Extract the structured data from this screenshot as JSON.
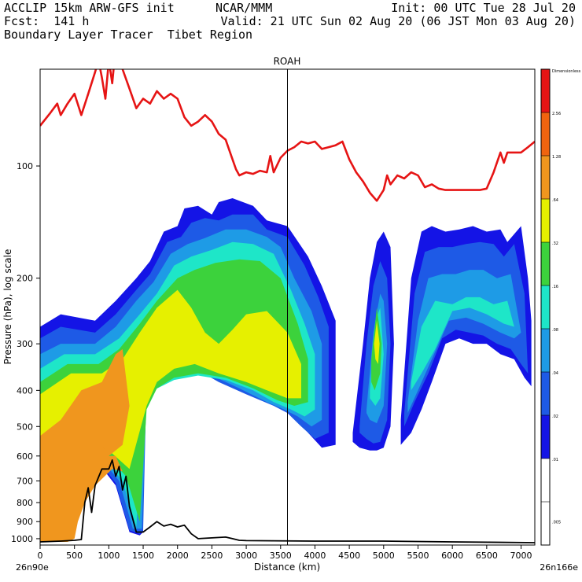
{
  "header": {
    "line1_left": "ACCLIP 15km ARW-GFS init",
    "line1_center": "NCAR/MMM",
    "line1_right": "Init: 00 UTC Tue 28 Jul 20",
    "line2_left": "Fcst:  141 h",
    "line2_right": "Valid: 21 UTC Sun 02 Aug 20 (06 JST Mon 03 Aug 20)",
    "line3_left": "Boundary Layer Tracer  Tibet Region"
  },
  "chart_data": {
    "type": "cross-section",
    "title": "ROAH",
    "xlabel": "Distance (km)",
    "ylabel": "Pressure (hPa), log scale",
    "xlim": [
      0,
      7200
    ],
    "ylim_pressure": [
      1040,
      55
    ],
    "x_ticks": [
      0,
      500,
      1000,
      1500,
      2000,
      2500,
      3000,
      3500,
      4000,
      4500,
      5000,
      5500,
      6000,
      6500,
      7000
    ],
    "x_tick_labels": [
      "0",
      "500",
      "1000",
      "1500",
      "2000",
      "2500",
      "3000",
      "3500",
      "4000",
      "4500",
      "5000",
      "5500",
      "6000",
      "6500",
      "7000"
    ],
    "y_ticks": [
      100,
      200,
      300,
      400,
      500,
      600,
      700,
      800,
      900,
      1000
    ],
    "y_tick_labels": [
      "100",
      "200",
      "300",
      "400",
      "500",
      "600",
      "700",
      "800",
      "900",
      "1000"
    ],
    "left_endpoint_label": "26n90e",
    "right_endpoint_label": "26n166e",
    "marker_line_km": 3600,
    "colorbar": {
      "title": "Dimensionless",
      "levels": [
        ".005",
        ".01",
        ".02",
        ".04",
        ".08",
        ".16",
        ".32",
        ".64",
        "1.28",
        "2.56"
      ],
      "colors": [
        "#ffffff",
        "#ffffff",
        "#1414e6",
        "#1e5ae6",
        "#1e9be6",
        "#1ee6c8",
        "#3cd23c",
        "#e6f000",
        "#f0961e",
        "#f0640f",
        "#e61414"
      ]
    },
    "tropopause_line": {
      "color": "#e61414",
      "x": [
        0,
        150,
        250,
        300,
        400,
        500,
        600,
        700,
        800,
        850,
        900,
        950,
        1000,
        1050,
        1100,
        1150,
        1200,
        1300,
        1400,
        1500,
        1600,
        1700,
        1800,
        1900,
        2000,
        2100,
        2200,
        2300,
        2400,
        2500,
        2600,
        2700,
        2800,
        2850,
        2900,
        3000,
        3100,
        3200,
        3300,
        3350,
        3400,
        3500,
        3600,
        3700,
        3800,
        3900,
        4000,
        4100,
        4200,
        4300,
        4400,
        4500,
        4600,
        4700,
        4800,
        4900,
        5000,
        5050,
        5100,
        5200,
        5300,
        5400,
        5500,
        5600,
        5700,
        5800,
        5900,
        6000,
        6100,
        6200,
        6300,
        6400,
        6500,
        6600,
        6700,
        6750,
        6800,
        6900,
        7000,
        7100,
        7200
      ],
      "y": [
        78,
        72,
        68,
        73,
        68,
        64,
        73,
        64,
        56,
        52,
        58,
        66,
        52,
        60,
        48,
        44,
        55,
        62,
        70,
        66,
        68,
        63,
        66,
        64,
        66,
        74,
        78,
        76,
        73,
        76,
        82,
        85,
        96,
        102,
        106,
        104,
        105,
        103,
        104,
        94,
        104,
        95,
        91,
        89,
        86,
        87,
        86,
        90,
        89,
        88,
        86,
        96,
        104,
        110,
        118,
        124,
        116,
        106,
        112,
        106,
        108,
        104,
        106,
        114,
        112,
        115,
        116,
        116,
        116,
        116,
        116,
        116,
        115,
        104,
        92,
        98,
        92,
        92,
        92,
        89,
        86
      ]
    },
    "terrain_line": {
      "color": "#000000",
      "x": [
        0,
        300,
        500,
        600,
        650,
        700,
        750,
        800,
        900,
        1000,
        1050,
        1100,
        1150,
        1200,
        1250,
        1300,
        1400,
        1500,
        1600,
        1700,
        1800,
        1900,
        2000,
        2100,
        2200,
        2300,
        2500,
        2700,
        2800,
        2900,
        3000,
        4000,
        5000,
        6000,
        7200
      ],
      "y": [
        1020,
        1015,
        1010,
        1005,
        800,
        730,
        850,
        720,
        650,
        650,
        615,
        680,
        640,
        740,
        680,
        820,
        960,
        960,
        930,
        900,
        925,
        915,
        930,
        920,
        970,
        1000,
        995,
        990,
        1000,
        1010,
        1012,
        1015,
        1015,
        1020,
        1025
      ]
    },
    "tracer_levels_drawn": [
      {
        "level": ".01",
        "color": "#1414e6"
      },
      {
        "level": ".02",
        "color": "#1e5ae6"
      },
      {
        "level": ".04",
        "color": "#1e9be6"
      },
      {
        "level": ".08",
        "color": "#1ee6c8"
      },
      {
        "level": ".16",
        "color": "#3cd23c"
      },
      {
        "level": ".32",
        "color": "#e6f000"
      },
      {
        "level": ".64",
        "color": "#f0961e"
      }
    ],
    "tracer_regions": [
      {
        "name": "main-plume",
        "level": ".01",
        "x": [
          0,
          300,
          800,
          1100,
          1400,
          1600,
          1800,
          2000,
          2100,
          2300,
          2500,
          2600,
          2800,
          3100,
          3300,
          3600,
          3900,
          4100,
          4300,
          4300,
          4100,
          3900,
          3700,
          3500,
          3100,
          2600,
          2200,
          1800,
          1500,
          1500,
          1450,
          1300,
          1100,
          800,
          400,
          0
        ],
        "y": [
          270,
          250,
          260,
          230,
          200,
          180,
          150,
          145,
          130,
          128,
          135,
          125,
          122,
          128,
          140,
          145,
          175,
          210,
          260,
          560,
          570,
          520,
          440,
          430,
          400,
          370,
          330,
          330,
          360,
          960,
          980,
          960,
          720,
          610,
          560,
          540
        ]
      },
      {
        "name": "main-plume",
        "level": ".02",
        "x": [
          0,
          300,
          800,
          1100,
          1400,
          1600,
          1850,
          2050,
          2200,
          2400,
          2600,
          2800,
          3100,
          3300,
          3600,
          3850,
          4050,
          4200,
          4200,
          4000,
          3800,
          3600,
          3400,
          3000,
          2600,
          2200,
          1850,
          1550,
          1500,
          1450,
          1300,
          1100,
          800,
          400,
          0
        ],
        "y": [
          290,
          270,
          280,
          250,
          215,
          195,
          160,
          155,
          142,
          138,
          140,
          135,
          135,
          148,
          155,
          185,
          225,
          270,
          520,
          540,
          500,
          460,
          440,
          410,
          380,
          345,
          345,
          370,
          950,
          970,
          950,
          710,
          600,
          560,
          545
        ]
      },
      {
        "name": "main-plume",
        "level": ".04",
        "x": [
          0,
          300,
          800,
          1100,
          1400,
          1650,
          1900,
          2150,
          2400,
          2700,
          3000,
          3300,
          3500,
          3700,
          3950,
          4100,
          4100,
          3950,
          3750,
          3550,
          3300,
          2900,
          2500,
          2100,
          1800,
          1550,
          1480,
          1350,
          1150,
          850,
          400,
          0
        ],
        "y": [
          320,
          300,
          300,
          270,
          230,
          205,
          172,
          162,
          156,
          148,
          148,
          155,
          165,
          200,
          245,
          300,
          480,
          500,
          470,
          450,
          430,
          395,
          365,
          360,
          375,
          410,
          940,
          940,
          700,
          600,
          560,
          550
        ]
      },
      {
        "name": "main-plume",
        "level": ".08",
        "x": [
          0,
          350,
          800,
          1150,
          1450,
          1700,
          1950,
          2200,
          2500,
          2800,
          3100,
          3400,
          3650,
          3850,
          4000,
          4000,
          3850,
          3650,
          3400,
          3100,
          2700,
          2300,
          1950,
          1650,
          1500,
          1400,
          1200,
          900,
          450,
          0
        ],
        "y": [
          350,
          320,
          320,
          290,
          250,
          220,
          185,
          175,
          168,
          160,
          162,
          172,
          215,
          265,
          320,
          450,
          470,
          450,
          430,
          400,
          375,
          365,
          375,
          400,
          450,
          930,
          700,
          600,
          565,
          560
        ]
      },
      {
        "name": "main-plume",
        "level": ".16",
        "x": [
          0,
          400,
          850,
          1150,
          1450,
          1700,
          2000,
          2250,
          2550,
          2900,
          3200,
          3500,
          3750,
          3900,
          3900,
          3700,
          3450,
          3100,
          2700,
          2300,
          1950,
          1700,
          1550,
          1450,
          1250,
          950,
          500,
          0
        ],
        "y": [
          380,
          340,
          340,
          310,
          265,
          230,
          200,
          190,
          182,
          178,
          180,
          200,
          265,
          330,
          430,
          440,
          425,
          395,
          370,
          360,
          370,
          395,
          450,
          900,
          680,
          590,
          570,
          565
        ]
      },
      {
        "name": "main-plume",
        "level": ".32",
        "x": [
          0,
          450,
          900,
          1200,
          1450,
          1700,
          2000,
          2200,
          2400,
          2600,
          2800,
          3000,
          3300,
          3600,
          3800,
          3800,
          3600,
          3300,
          3000,
          2600,
          2250,
          1950,
          1700,
          1550,
          1300,
          1000,
          550,
          0
        ],
        "y": [
          410,
          360,
          360,
          330,
          280,
          240,
          215,
          240,
          280,
          300,
          275,
          250,
          245,
          280,
          340,
          420,
          420,
          400,
          380,
          360,
          340,
          350,
          380,
          440,
          650,
          580,
          570,
          570
        ]
      },
      {
        "name": "main-plume",
        "level": ".64",
        "x": [
          0,
          300,
          600,
          900,
          1100,
          1200,
          1300,
          1200,
          1000,
          800,
          600,
          400,
          200,
          0
        ],
        "y": [
          530,
          480,
          400,
          380,
          320,
          310,
          440,
          560,
          600,
          640,
          680,
          740,
          800,
          800
        ]
      },
      {
        "name": "lower-core",
        "level": ".64",
        "x": [
          0,
          400,
          700,
          900,
          1000,
          1100,
          1200,
          1050,
          800,
          650,
          550,
          500,
          400,
          0
        ],
        "y": [
          620,
          580,
          560,
          560,
          600,
          600,
          660,
          650,
          720,
          800,
          900,
          1000,
          1020,
          1020
        ]
      },
      {
        "name": "east-column-1",
        "level": ".01",
        "x": [
          4550,
          4700,
          4800,
          4900,
          5000,
          5100,
          5150,
          5100,
          5000,
          4900,
          4800,
          4650,
          4550
        ],
        "y": [
          520,
          300,
          200,
          160,
          150,
          165,
          300,
          500,
          570,
          580,
          580,
          570,
          550
        ]
      },
      {
        "name": "east-column-1",
        "level": ".02",
        "x": [
          4650,
          4750,
          4850,
          4950,
          5050,
          5100,
          5050,
          4950,
          4850,
          4750,
          4650
        ],
        "y": [
          500,
          300,
          210,
          180,
          200,
          300,
          480,
          550,
          555,
          540,
          520
        ]
      },
      {
        "name": "east-column-1",
        "level": ".04",
        "x": [
          4750,
          4850,
          4950,
          5000,
          5050,
          5000,
          4900,
          4800,
          4750
        ],
        "y": [
          450,
          280,
          220,
          230,
          300,
          440,
          490,
          480,
          460
        ]
      },
      {
        "name": "east-column-1",
        "level": ".08",
        "x": [
          4800,
          4880,
          4950,
          5000,
          4950,
          4880,
          4800
        ],
        "y": [
          400,
          260,
          240,
          320,
          420,
          440,
          420
        ]
      },
      {
        "name": "east-column-1",
        "level": ".16",
        "x": [
          4820,
          4900,
          4970,
          4950,
          4870,
          4820
        ],
        "y": [
          330,
          240,
          300,
          360,
          400,
          380
        ]
      },
      {
        "name": "east-column-1",
        "level": ".32",
        "x": [
          4860,
          4900,
          4940,
          4920,
          4880
        ],
        "y": [
          300,
          260,
          300,
          340,
          330
        ]
      },
      {
        "name": "east-band",
        "level": ".01",
        "x": [
          5250,
          5400,
          5550,
          5700,
          5900,
          6100,
          6300,
          6500,
          6700,
          6800,
          7000,
          7100,
          7150,
          7150,
          7050,
          6900,
          6700,
          6500,
          6300,
          6100,
          5900,
          5700,
          5550,
          5400,
          5250
        ],
        "y": [
          480,
          200,
          150,
          145,
          150,
          148,
          145,
          150,
          148,
          160,
          145,
          200,
          260,
          390,
          370,
          330,
          320,
          300,
          300,
          290,
          300,
          380,
          450,
          520,
          560
        ]
      },
      {
        "name": "east-band",
        "level": ".02",
        "x": [
          5300,
          5450,
          5600,
          5800,
          6000,
          6200,
          6400,
          6600,
          6750,
          6900,
          7050,
          7100,
          7000,
          6850,
          6650,
          6450,
          6250,
          6050,
          5850,
          5650,
          5450,
          5300
        ],
        "y": [
          460,
          220,
          170,
          165,
          165,
          162,
          160,
          162,
          175,
          162,
          220,
          360,
          340,
          310,
          300,
          285,
          280,
          275,
          290,
          360,
          430,
          500
        ]
      },
      {
        "name": "east-band",
        "level": ".04",
        "x": [
          5350,
          5500,
          5650,
          5850,
          6050,
          6250,
          6450,
          6650,
          6850,
          7000,
          6900,
          6700,
          6450,
          6200,
          5950,
          5700,
          5500,
          5350
        ],
        "y": [
          430,
          260,
          200,
          195,
          195,
          190,
          190,
          200,
          195,
          280,
          290,
          280,
          265,
          255,
          260,
          330,
          400,
          460
        ]
      },
      {
        "name": "east-band",
        "level": ".08",
        "x": [
          5400,
          5550,
          5750,
          6000,
          6200,
          6400,
          6600,
          6800,
          6900,
          6750,
          6500,
          6250,
          6000,
          5750,
          5550,
          5400
        ],
        "y": [
          380,
          270,
          230,
          235,
          225,
          225,
          235,
          230,
          270,
          265,
          250,
          240,
          245,
          310,
          360,
          400
        ]
      }
    ]
  }
}
